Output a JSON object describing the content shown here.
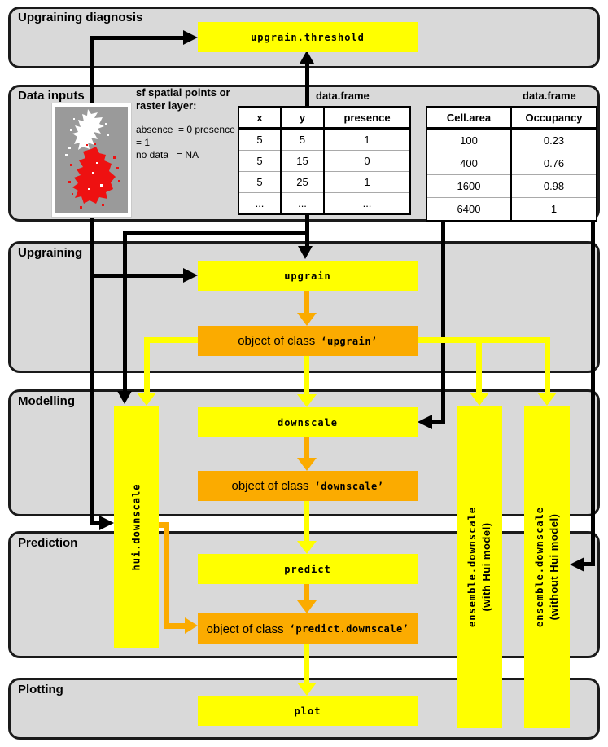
{
  "panels": {
    "upgraining_diagnosis": {
      "title": "Upgraining diagnosis"
    },
    "data_inputs": {
      "title": "Data inputs"
    },
    "upgraining": {
      "title": "Upgraining"
    },
    "modelling": {
      "title": "Modelling"
    },
    "prediction": {
      "title": "Prediction"
    },
    "plotting": {
      "title": "Plotting"
    }
  },
  "data_inputs": {
    "spatial_note": "sf spatial points or\nraster layer:",
    "legend": "absence  = 0 presence\n= 1\nno data   = NA",
    "map_name": "uk-species-occurrence-map"
  },
  "tables": {
    "xy_presence": {
      "label": "data.frame",
      "headers": [
        "x",
        "y",
        "presence"
      ],
      "rows": [
        [
          "5",
          "5",
          "1"
        ],
        [
          "5",
          "15",
          "0"
        ],
        [
          "5",
          "25",
          "1"
        ],
        [
          "...",
          "...",
          "..."
        ]
      ]
    },
    "occupancy": {
      "label": "data.frame",
      "headers": [
        "Cell.area",
        "Occupancy"
      ],
      "rows": [
        [
          "100",
          "0.23"
        ],
        [
          "400",
          "0.76"
        ],
        [
          "1600",
          "0.98"
        ],
        [
          "6400",
          "1"
        ]
      ]
    }
  },
  "functions": {
    "upgrain_threshold": "upgrain.threshold",
    "upgrain": "upgrain",
    "downscale": "downscale",
    "predict": "predict",
    "plot": "plot",
    "hui_downscale": "hui.downscale",
    "ensemble_with": {
      "name": "ensemble.downscale",
      "qualifier": "(with Hui model)"
    },
    "ensemble_without": {
      "name": "ensemble.downscale",
      "qualifier": "(without Hui model)"
    }
  },
  "objects": {
    "upgrain": {
      "prefix": "object of class",
      "class_name": "‘upgrain’"
    },
    "downscale": {
      "prefix": "object of class",
      "class_name": "‘downscale’"
    },
    "predict_downscale": {
      "prefix": "object of class",
      "class_name": "‘predict.downscale’"
    }
  },
  "colors": {
    "function_box": "#ffff00",
    "object_box": "#fbab00",
    "panel_background": "#d9d9d9",
    "connector_black": "#000000",
    "presence_red": "#ee1111",
    "absence_white": "#ffffff",
    "map_background": "#9a9a9a"
  }
}
